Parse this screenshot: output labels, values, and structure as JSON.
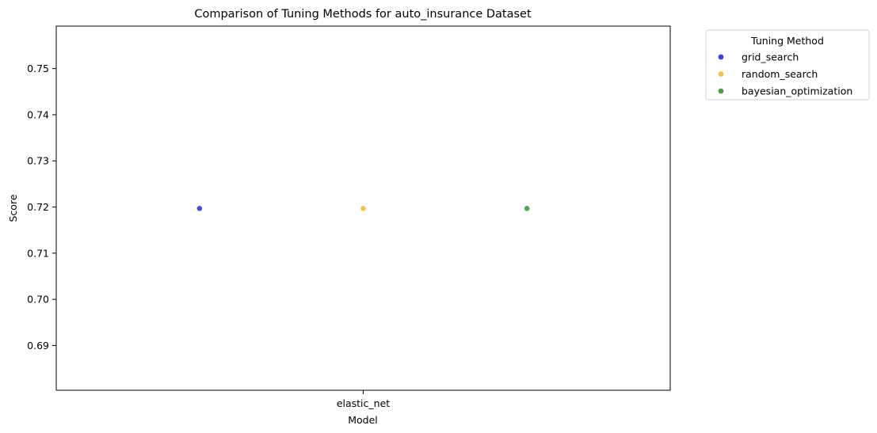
{
  "chart_data": {
    "type": "scatter",
    "title": "Comparison of Tuning Methods for auto_insurance Dataset",
    "xlabel": "Model",
    "ylabel": "Score",
    "categories": [
      "elastic_net"
    ],
    "ylim": [
      0.6803,
      0.7592
    ],
    "yticks": [
      "0.69",
      "0.70",
      "0.71",
      "0.72",
      "0.73",
      "0.74",
      "0.75"
    ],
    "grid": false,
    "legend": {
      "title": "Tuning Method",
      "placement": "outside-top-right"
    },
    "series": [
      {
        "name": "grid_search",
        "color": "#4040e6",
        "points": [
          {
            "x": "elastic_net",
            "y": 0.7197
          }
        ]
      },
      {
        "name": "random_search",
        "color": "#fbbd4a",
        "points": [
          {
            "x": "elastic_net",
            "y": 0.7197
          }
        ]
      },
      {
        "name": "bayesian_optimization",
        "color": "#4a9e46",
        "points": [
          {
            "x": "elastic_net",
            "y": 0.7197
          }
        ]
      }
    ]
  }
}
